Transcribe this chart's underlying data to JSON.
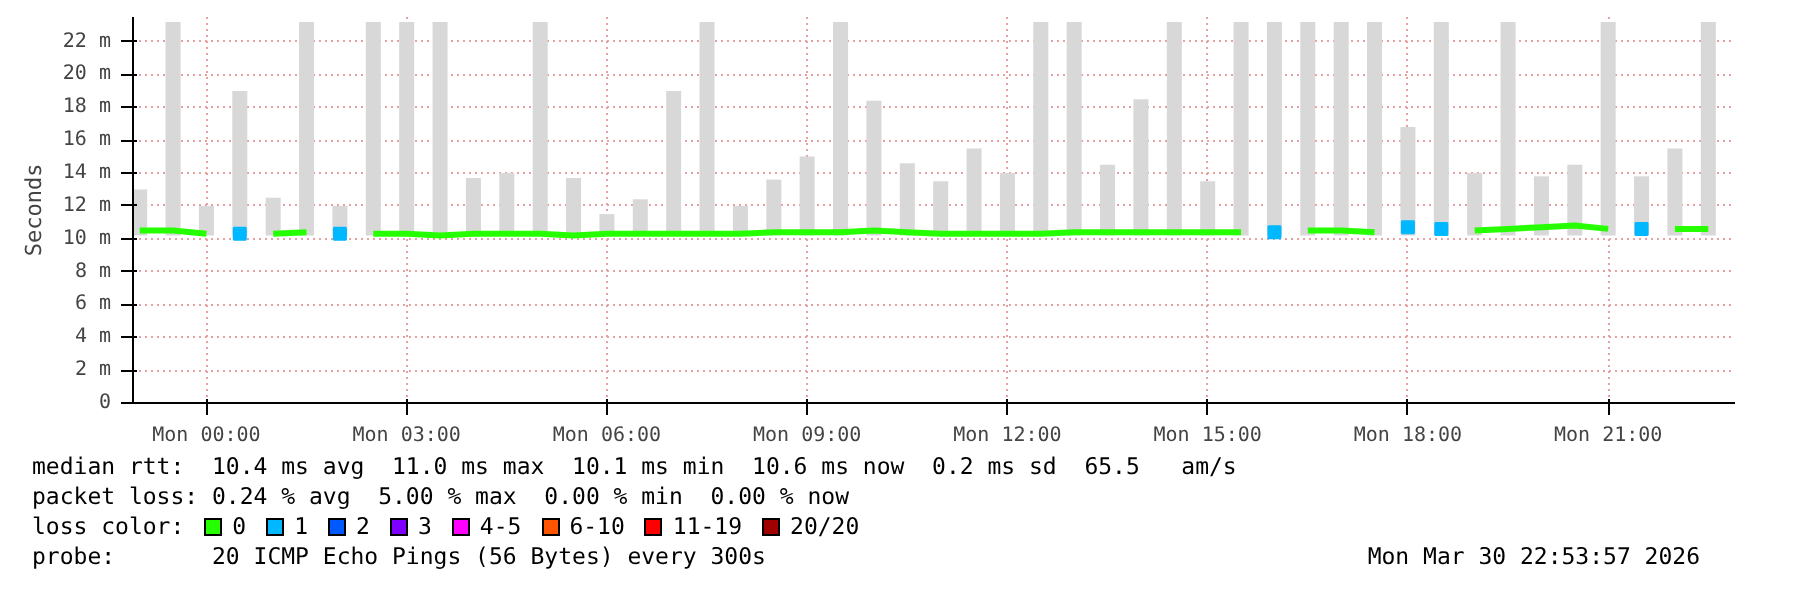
{
  "chart_data": {
    "type": "line",
    "ylabel": "Seconds",
    "legend_title": "loss color:",
    "legend": "bottom",
    "grid": true,
    "xlim": [
      "2026-03-29T22:54",
      "2026-03-30T22:54"
    ],
    "ylim": [
      0,
      23.5
    ],
    "xticks": [
      {
        "value": "2026-03-30T00:00",
        "label": "Mon 00:00"
      },
      {
        "value": "2026-03-30T03:00",
        "label": "Mon 03:00"
      },
      {
        "value": "2026-03-30T06:00",
        "label": "Mon 06:00"
      },
      {
        "value": "2026-03-30T09:00",
        "label": "Mon 09:00"
      },
      {
        "value": "2026-03-30T12:00",
        "label": "Mon 12:00"
      },
      {
        "value": "2026-03-30T15:00",
        "label": "Mon 15:00"
      },
      {
        "value": "2026-03-30T18:00",
        "label": "Mon 18:00"
      },
      {
        "value": "2026-03-30T21:00",
        "label": "Mon 21:00"
      }
    ],
    "yticks": [
      0,
      {
        "value": 2,
        "label": "2 m"
      },
      {
        "value": 4,
        "label": "4 m"
      },
      {
        "value": 6,
        "label": "6 m"
      },
      {
        "value": 8,
        "label": "8 m"
      },
      {
        "value": 10,
        "label": "10 m"
      },
      {
        "value": 12,
        "label": "12 m"
      },
      {
        "value": 14,
        "label": "14 m"
      },
      {
        "value": 16,
        "label": "16 m"
      },
      {
        "value": 18,
        "label": "18 m"
      },
      {
        "value": 20,
        "label": "20 m"
      },
      {
        "value": 22,
        "label": "22 m"
      }
    ],
    "x": [
      "2026-03-29T23:00",
      "2026-03-29T23:30",
      "2026-03-30T00:00",
      "2026-03-30T00:30",
      "2026-03-30T01:00",
      "2026-03-30T01:30",
      "2026-03-30T02:00",
      "2026-03-30T02:30",
      "2026-03-30T03:00",
      "2026-03-30T03:30",
      "2026-03-30T04:00",
      "2026-03-30T04:30",
      "2026-03-30T05:00",
      "2026-03-30T05:30",
      "2026-03-30T06:00",
      "2026-03-30T06:30",
      "2026-03-30T07:00",
      "2026-03-30T07:30",
      "2026-03-30T08:00",
      "2026-03-30T08:30",
      "2026-03-30T09:00",
      "2026-03-30T09:30",
      "2026-03-30T10:00",
      "2026-03-30T10:30",
      "2026-03-30T11:00",
      "2026-03-30T11:30",
      "2026-03-30T12:00",
      "2026-03-30T12:30",
      "2026-03-30T13:00",
      "2026-03-30T13:30",
      "2026-03-30T14:00",
      "2026-03-30T14:30",
      "2026-03-30T15:00",
      "2026-03-30T15:30",
      "2026-03-30T16:00",
      "2026-03-30T16:30",
      "2026-03-30T17:00",
      "2026-03-30T17:30",
      "2026-03-30T18:00",
      "2026-03-30T18:30",
      "2026-03-30T19:00",
      "2026-03-30T19:30",
      "2026-03-30T20:00",
      "2026-03-30T20:30",
      "2026-03-30T21:00",
      "2026-03-30T21:30",
      "2026-03-30T22:00",
      "2026-03-30T22:30"
    ],
    "series": [
      {
        "type": "bar",
        "color": "#d8d8d8",
        "base": [
          10.2,
          10.2,
          10.2,
          10.2,
          10.2,
          10.2,
          10.2,
          10.2,
          10.2,
          10.2,
          10.2,
          10.2,
          10.2,
          10.2,
          10.2,
          10.2,
          10.2,
          10.2,
          10.2,
          10.2,
          10.2,
          10.2,
          10.2,
          10.2,
          10.2,
          10.2,
          10.2,
          10.2,
          10.2,
          10.2,
          10.2,
          10.2,
          10.2,
          10.2,
          10.2,
          10.2,
          10.2,
          10.2,
          10.2,
          10.2,
          10.2,
          10.2,
          10.2,
          10.2,
          10.2,
          10.2,
          10.2,
          10.2
        ],
        "values": [
          2.8,
          13,
          1.8,
          8.8,
          2.3,
          13,
          1.8,
          13,
          13,
          13,
          3.5,
          3.8,
          13,
          3.5,
          1.3,
          2.2,
          8.8,
          13,
          1.8,
          3.4,
          4.8,
          13,
          8.2,
          4.4,
          3.3,
          5.3,
          3.8,
          13,
          13,
          4.3,
          8.3,
          13,
          3.3,
          13,
          13,
          13,
          13,
          13,
          6.6,
          13,
          3.8,
          13,
          3.6,
          4.3,
          13,
          3.6,
          5.3,
          13
        ]
      },
      {
        "name": "0",
        "color": "#26ff00",
        "values": [
          10.5,
          10.5,
          10.3,
          null,
          10.3,
          10.4,
          null,
          10.3,
          10.3,
          10.2,
          10.3,
          10.3,
          10.3,
          10.2,
          10.3,
          10.3,
          10.3,
          10.3,
          10.3,
          10.4,
          10.4,
          10.4,
          10.5,
          10.4,
          10.3,
          10.3,
          10.3,
          10.3,
          10.4,
          10.4,
          10.4,
          10.4,
          10.4,
          10.4,
          null,
          10.5,
          10.5,
          10.4,
          null,
          null,
          10.5,
          10.6,
          10.7,
          10.8,
          10.6,
          null,
          10.6,
          10.6
        ]
      },
      {
        "name": "1",
        "color": "#00b8ff",
        "type": "scatter",
        "marker": "square",
        "values": [
          null,
          null,
          null,
          10.3,
          null,
          null,
          10.3,
          null,
          null,
          null,
          null,
          null,
          null,
          null,
          null,
          null,
          null,
          null,
          null,
          null,
          null,
          null,
          null,
          null,
          null,
          null,
          null,
          null,
          null,
          null,
          null,
          null,
          null,
          null,
          10.4,
          null,
          null,
          null,
          10.7,
          10.6,
          null,
          null,
          null,
          null,
          null,
          10.6,
          null,
          null
        ]
      },
      {
        "name": "2",
        "color": "#0059ff",
        "type": "scatter",
        "marker": "square",
        "values": [
          null,
          null,
          null,
          null,
          null,
          null,
          null,
          null,
          null,
          null,
          null,
          null,
          null,
          null,
          null,
          null,
          null,
          null,
          null,
          null,
          null,
          null,
          null,
          null,
          null,
          null,
          null,
          null,
          null,
          null,
          null,
          null,
          null,
          null,
          null,
          null,
          null,
          null,
          null,
          null,
          null,
          null,
          null,
          null,
          null,
          null,
          null,
          null
        ]
      },
      {
        "name": "3",
        "color": "#7e00ff",
        "type": "scatter",
        "marker": "square",
        "values": [
          null,
          null,
          null,
          null,
          null,
          null,
          null,
          null,
          null,
          null,
          null,
          null,
          null,
          null,
          null,
          null,
          null,
          null,
          null,
          null,
          null,
          null,
          null,
          null,
          null,
          null,
          null,
          null,
          null,
          null,
          null,
          null,
          null,
          null,
          null,
          null,
          null,
          null,
          null,
          null,
          null,
          null,
          null,
          null,
          null,
          null,
          null,
          null
        ]
      },
      {
        "name": "4-5",
        "color": "#ff00ff",
        "type": "scatter",
        "marker": "square",
        "values": [
          null,
          null,
          null,
          null,
          null,
          null,
          null,
          null,
          null,
          null,
          null,
          null,
          null,
          null,
          null,
          null,
          null,
          null,
          null,
          null,
          null,
          null,
          null,
          null,
          null,
          null,
          null,
          null,
          null,
          null,
          null,
          null,
          null,
          null,
          null,
          null,
          null,
          null,
          null,
          null,
          null,
          null,
          null,
          null,
          null,
          null,
          null,
          null
        ]
      },
      {
        "name": "6-10",
        "color": "#ff5500",
        "type": "scatter",
        "marker": "square",
        "values": [
          null,
          null,
          null,
          null,
          null,
          null,
          null,
          null,
          null,
          null,
          null,
          null,
          null,
          null,
          null,
          null,
          null,
          null,
          null,
          null,
          null,
          null,
          null,
          null,
          null,
          null,
          null,
          null,
          null,
          null,
          null,
          null,
          null,
          null,
          null,
          null,
          null,
          null,
          null,
          null,
          null,
          null,
          null,
          null,
          null,
          null,
          null,
          null
        ]
      },
      {
        "name": "11-19",
        "color": "#ff0000",
        "type": "scatter",
        "marker": "square",
        "values": [
          null,
          null,
          null,
          null,
          null,
          null,
          null,
          null,
          null,
          null,
          null,
          null,
          null,
          null,
          null,
          null,
          null,
          null,
          null,
          null,
          null,
          null,
          null,
          null,
          null,
          null,
          null,
          null,
          null,
          null,
          null,
          null,
          null,
          null,
          null,
          null,
          null,
          null,
          null,
          null,
          null,
          null,
          null,
          null,
          null,
          null,
          null,
          null
        ]
      },
      {
        "name": "20/20",
        "color": "#a10000",
        "type": "scatter",
        "marker": "square",
        "values": [
          null,
          null,
          null,
          null,
          null,
          null,
          null,
          null,
          null,
          null,
          null,
          null,
          null,
          null,
          null,
          null,
          null,
          null,
          null,
          null,
          null,
          null,
          null,
          null,
          null,
          null,
          null,
          null,
          null,
          null,
          null,
          null,
          null,
          null,
          null,
          null,
          null,
          null,
          null,
          null,
          null,
          null,
          null,
          null,
          null,
          null,
          null,
          null
        ]
      }
    ],
    "annotations": [
      "median rtt:  10.4 ms avg  11.0 ms max  10.1 ms min  10.6 ms now  0.2 ms sd  65.5   am/s",
      "packet loss: 0.24 % avg  5.00 % max  0.00 % min  0.00 % now",
      "probe:       20 ICMP Echo Pings (56 Bytes) every 300s",
      "Mon Mar 30 22:53:57 2026"
    ]
  }
}
